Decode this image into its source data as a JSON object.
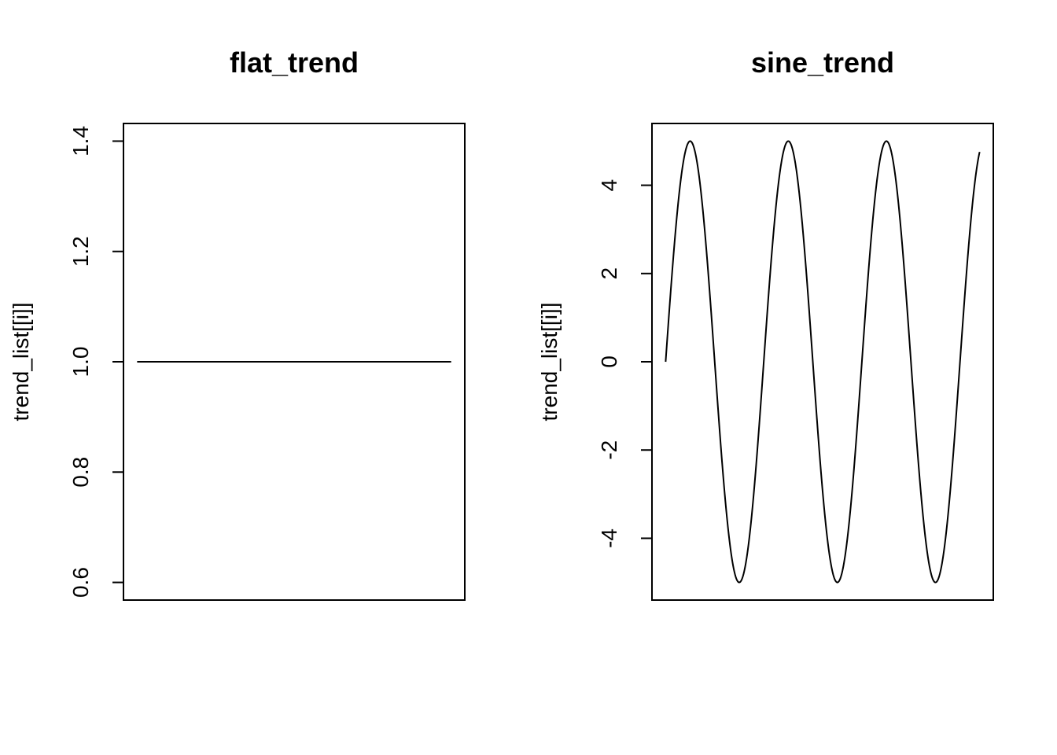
{
  "chart_data": [
    {
      "type": "line",
      "title": "flat_trend",
      "xlabel": "",
      "ylabel": "trend_list[[i]]",
      "ylim": [
        0.568,
        1.432
      ],
      "yticks": [
        0.6,
        0.8,
        1.0,
        1.2,
        1.4
      ],
      "ytick_labels": [
        "0.6",
        "0.8",
        "1.0",
        "1.2",
        "1.4"
      ],
      "x_axis_shown": false,
      "grid": false,
      "series": [
        {
          "function": "constant",
          "value": 1.0,
          "x": [
            1,
            101
          ]
        }
      ]
    },
    {
      "type": "line",
      "title": "sine_trend",
      "xlabel": "",
      "ylabel": "trend_list[[i]]",
      "ylim": [
        -5.4,
        5.4
      ],
      "yticks": [
        -4,
        -2,
        0,
        2,
        4
      ],
      "ytick_labels": [
        "-4",
        "-2",
        "0",
        "2",
        "4"
      ],
      "x_axis_shown": false,
      "grid": false,
      "series": [
        {
          "function": "sine",
          "amplitude": 5,
          "periods": 3.2,
          "x": [
            1,
            101
          ]
        }
      ]
    }
  ]
}
